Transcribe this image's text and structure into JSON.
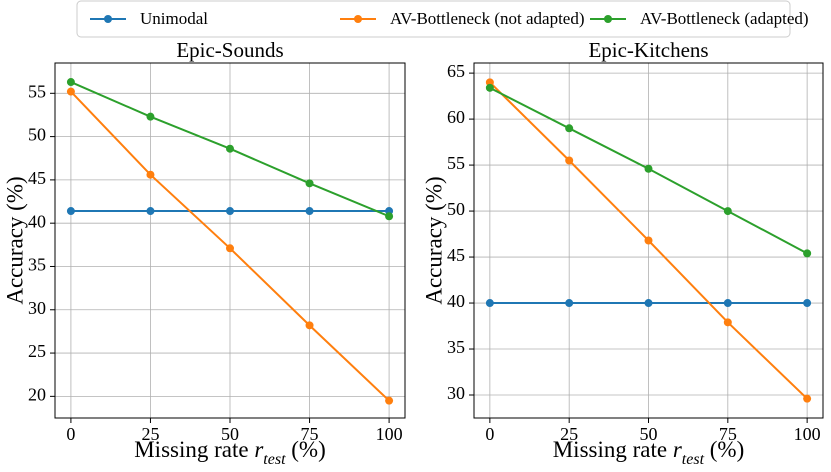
{
  "chart_data": [
    {
      "type": "line",
      "title": "Epic-Sounds",
      "xlabel": [
        "Missing rate ",
        "r",
        "test",
        " (%)"
      ],
      "ylabel": "Accuracy (%)",
      "x": [
        0,
        25,
        50,
        75,
        100
      ],
      "xlim": [
        -5,
        105
      ],
      "xticks": [
        0,
        25,
        50,
        75,
        100
      ],
      "ylim": [
        17.5,
        58.5
      ],
      "yticks": [
        20,
        25,
        30,
        35,
        40,
        45,
        50,
        55
      ],
      "grid": true,
      "series": [
        {
          "name": "Unimodal",
          "color": "#1f77b4",
          "values": [
            41.4,
            41.4,
            41.4,
            41.4,
            41.4
          ]
        },
        {
          "name": "AV-Bottleneck (not adapted)",
          "color": "#ff7f0e",
          "values": [
            55.2,
            45.6,
            37.1,
            28.2,
            19.5
          ]
        },
        {
          "name": "AV-Bottleneck (adapted)",
          "color": "#2ca02c",
          "values": [
            56.3,
            52.3,
            48.6,
            44.6,
            40.8
          ]
        }
      ]
    },
    {
      "type": "line",
      "title": "Epic-Kitchens",
      "xlabel": [
        "Missing rate ",
        "r",
        "test",
        " (%)"
      ],
      "ylabel": "Accuracy (%)",
      "x": [
        0,
        25,
        50,
        75,
        100
      ],
      "xlim": [
        -5,
        105
      ],
      "xticks": [
        0,
        25,
        50,
        75,
        100
      ],
      "ylim": [
        27.5,
        66.1
      ],
      "yticks": [
        30,
        35,
        40,
        45,
        50,
        55,
        60,
        65
      ],
      "grid": true,
      "series": [
        {
          "name": "Unimodal",
          "color": "#1f77b4",
          "values": [
            40.0,
            40.0,
            40.0,
            40.0,
            40.0
          ]
        },
        {
          "name": "AV-Bottleneck (not adapted)",
          "color": "#ff7f0e",
          "values": [
            64.0,
            55.5,
            46.8,
            37.9,
            29.6
          ]
        },
        {
          "name": "AV-Bottleneck (adapted)",
          "color": "#2ca02c",
          "values": [
            63.4,
            59.0,
            54.6,
            50.0,
            45.4
          ]
        }
      ]
    }
  ]
}
